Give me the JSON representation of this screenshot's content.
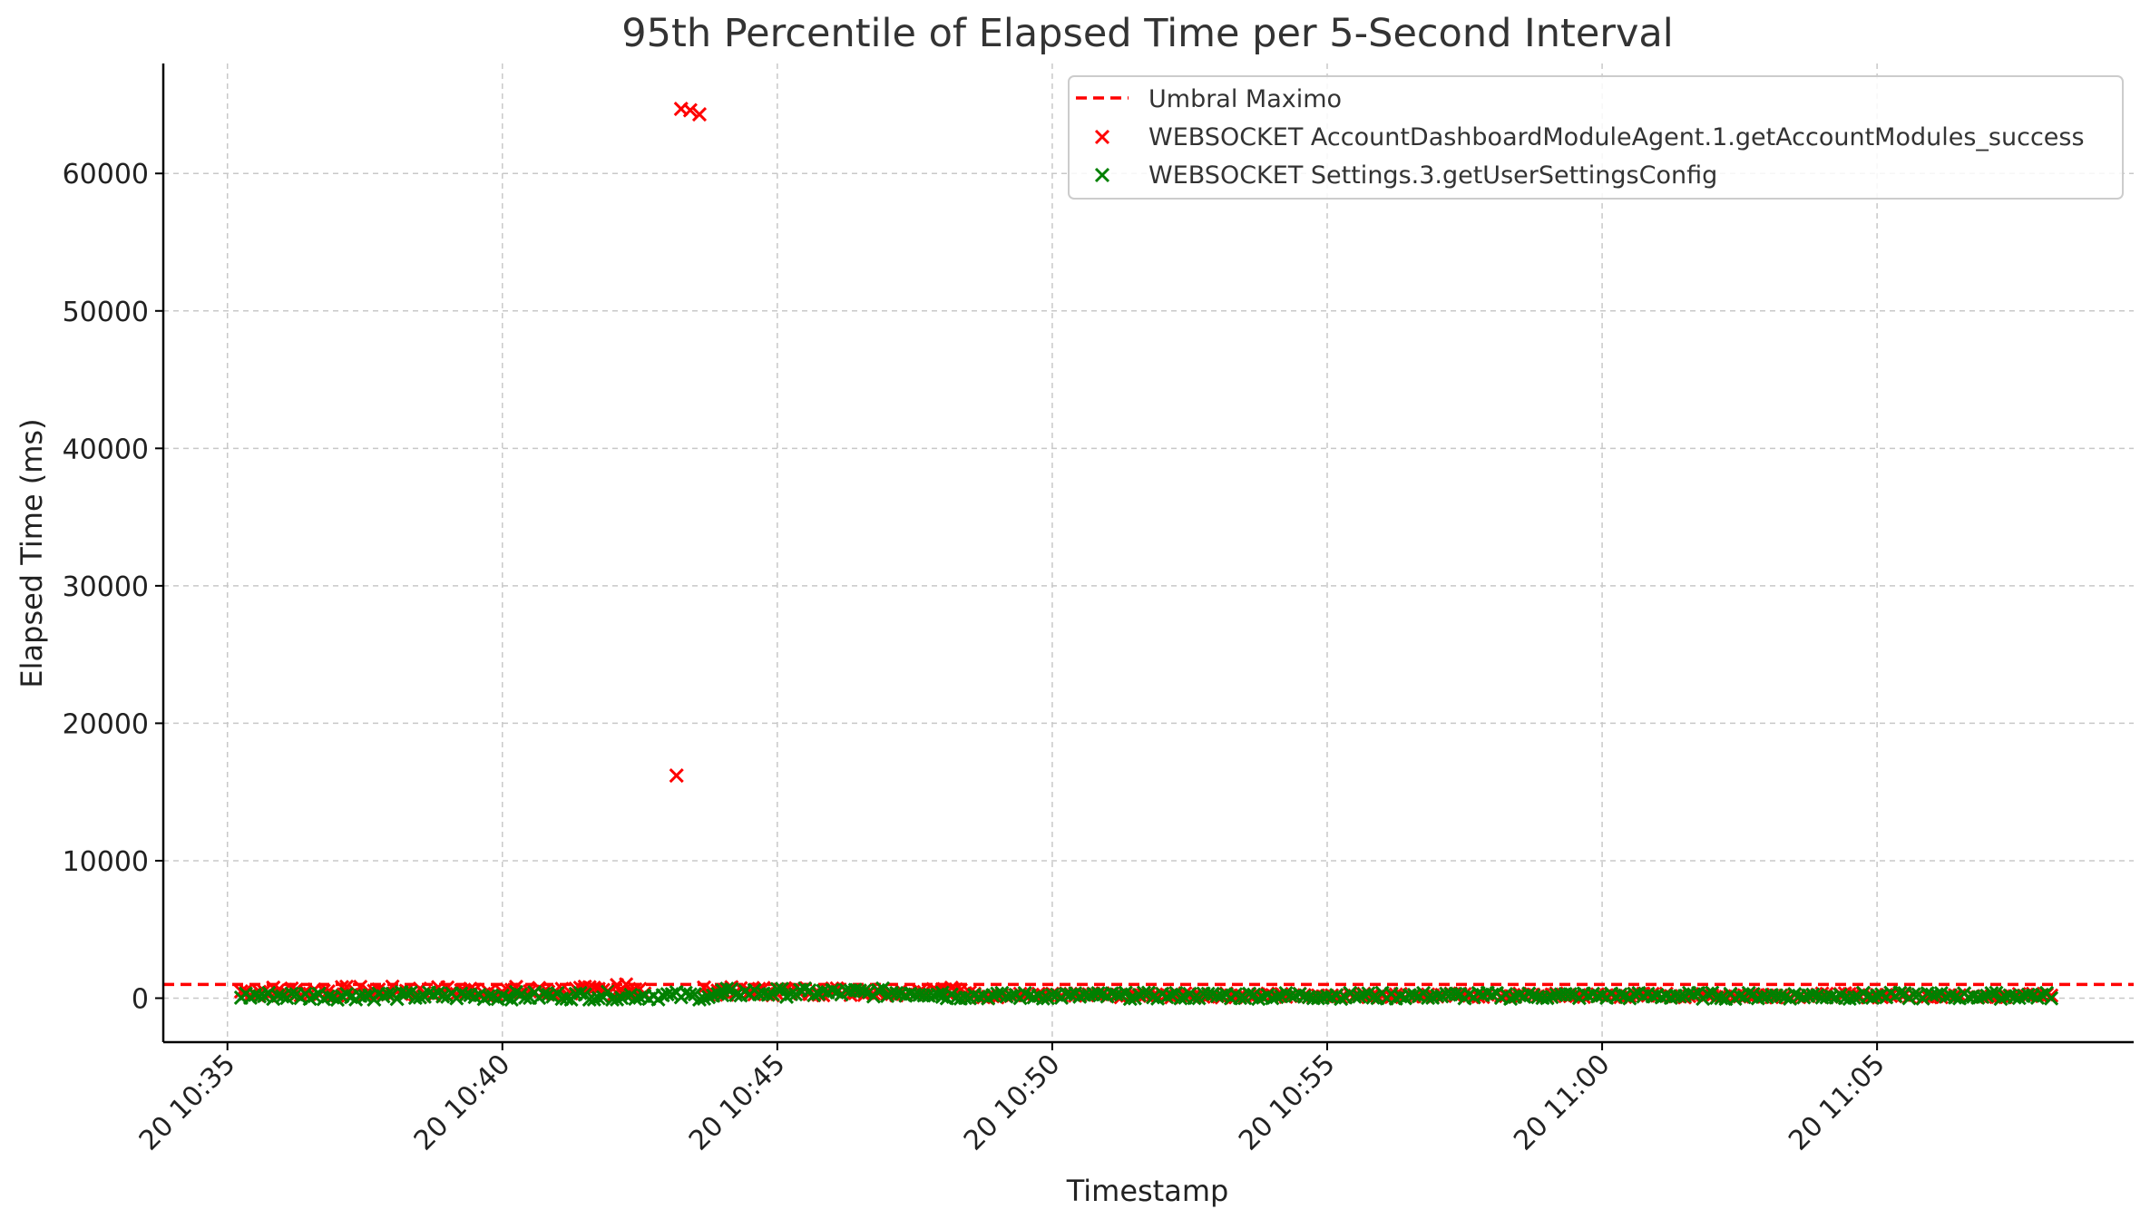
{
  "chart_data": {
    "type": "scatter",
    "title": "95th Percentile of Elapsed Time per 5-Second Interval",
    "xlabel": "Timestamp",
    "ylabel": "Elapsed Time (ms)",
    "x_ticks": [
      "20 10:35",
      "20 10:40",
      "20 10:45",
      "20 10:50",
      "20 10:55",
      "20 11:00",
      "20 11:05"
    ],
    "x_tick_minutes": [
      35,
      40,
      45,
      50,
      55,
      60,
      65
    ],
    "y_ticks": [
      0,
      10000,
      20000,
      30000,
      40000,
      50000,
      60000
    ],
    "y_tick_labels": [
      "0",
      "10000",
      "20000",
      "30000",
      "40000",
      "50000",
      "60000"
    ],
    "xlim": [
      "20 10:33:50",
      "20 11:09:40"
    ],
    "ylim": [
      -3200,
      68000
    ],
    "grid": true,
    "legend_position": "top-right",
    "threshold": {
      "name": "Umbral Maximo",
      "value": 1000,
      "color": "#ff0000",
      "style": "dashed"
    },
    "series": [
      {
        "name": "WEBSOCKET AccountDashboardModuleAgent.1.getAccountModules_success",
        "color": "#ff0000",
        "marker": "x",
        "outliers": [
          {
            "x": "20 10:43:10",
            "y": 16200
          },
          {
            "x": "20 10:43:15",
            "y": 64700
          },
          {
            "x": "20 10:43:25",
            "y": 64600
          },
          {
            "x": "20 10:43:35",
            "y": 64300
          },
          {
            "x": "20 10:42:05",
            "y": 950
          },
          {
            "x": "20 10:42:15",
            "y": 1000
          }
        ],
        "dense_segments": [
          {
            "from": "20 10:35:15",
            "to": "20 10:42:35",
            "min": 150,
            "max": 850
          },
          {
            "from": "20 10:43:40",
            "to": "20 10:48:30",
            "min": 200,
            "max": 800
          },
          {
            "from": "20 10:48:30",
            "to": "20 11:08:10",
            "min": 50,
            "max": 350
          }
        ]
      },
      {
        "name": "WEBSOCKET Settings.3.getUserSettingsConfig",
        "color": "#008000",
        "marker": "x",
        "dense_segments": [
          {
            "from": "20 10:35:15",
            "to": "20 10:44:00",
            "min": -100,
            "max": 450
          },
          {
            "from": "20 10:44:00",
            "to": "20 10:48:00",
            "min": 100,
            "max": 700
          },
          {
            "from": "20 10:48:00",
            "to": "20 11:08:10",
            "min": -50,
            "max": 400
          }
        ]
      }
    ]
  }
}
